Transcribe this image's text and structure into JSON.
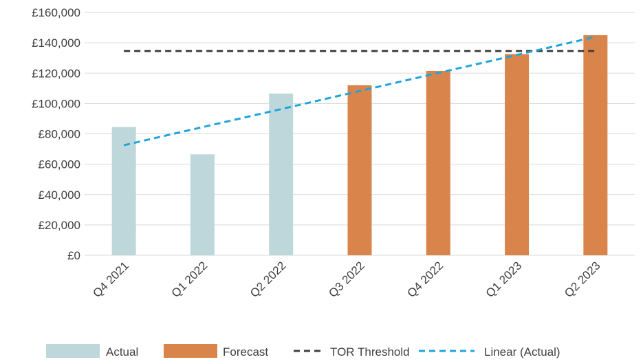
{
  "chart_data": {
    "type": "bar",
    "title": "",
    "xlabel": "",
    "ylabel": "",
    "ylim": [
      0,
      160000
    ],
    "y_tick_step": 20000,
    "y_tick_labels": [
      "£0",
      "£20,000",
      "£40,000",
      "£60,000",
      "£80,000",
      "£100,000",
      "£120,000",
      "£140,000",
      "£160,000"
    ],
    "categories": [
      "Q4 2021",
      "Q1 2022",
      "Q2 2022",
      "Q3 2022",
      "Q4 2022",
      "Q1 2023",
      "Q2 2023"
    ],
    "series": [
      {
        "name": "Actual",
        "kind": "bar",
        "color": "#bed7db",
        "values": [
          84500,
          66500,
          106500,
          null,
          null,
          null,
          null
        ]
      },
      {
        "name": "Forecast",
        "kind": "bar",
        "color": "#d9844a",
        "values": [
          null,
          null,
          null,
          112000,
          121500,
          132500,
          145000
        ]
      },
      {
        "name": "TOR Threshold",
        "kind": "line",
        "style": "dashed",
        "color": "#404040",
        "values": [
          134500,
          134500,
          134500,
          134500,
          134500,
          134500,
          134500
        ]
      },
      {
        "name": "Linear (Actual)",
        "kind": "line",
        "style": "dashed",
        "color": "#1ea5dd",
        "values": [
          72500,
          84400,
          96300,
          108200,
          120100,
          132000,
          143900
        ]
      }
    ],
    "grid": true,
    "legend_position": "bottom",
    "legend": [
      "Actual",
      "Forecast",
      "TOR Threshold",
      "Linear (Actual)"
    ]
  }
}
